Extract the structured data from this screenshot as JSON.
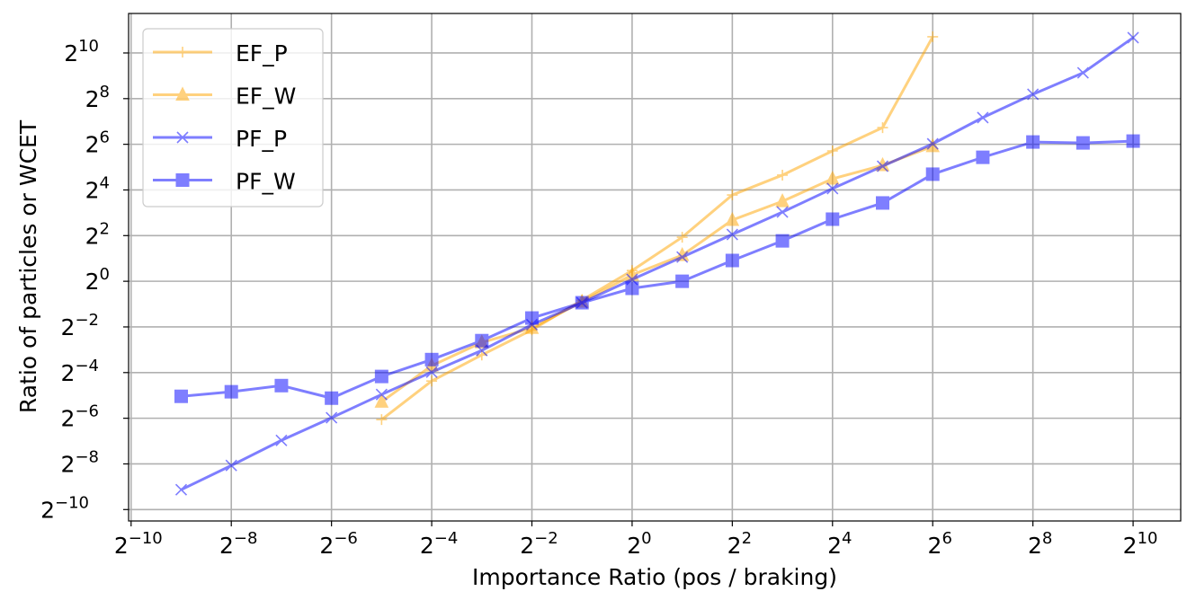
{
  "chart_data": {
    "type": "line",
    "title": "",
    "xlabel": "Importance Ratio (pos / braking)",
    "ylabel": "Ratio of particles or WCET",
    "xscale": "log2",
    "yscale": "log2",
    "xlim_log2": [
      -10.05,
      10.95
    ],
    "ylim_log2": [
      -10.5,
      11.73
    ],
    "grid": true,
    "legend_position": "top-left",
    "x_ticks_log2": [
      -10,
      -8,
      -6,
      -4,
      -2,
      0,
      2,
      4,
      6,
      8,
      10
    ],
    "y_ticks_log2": [
      -10,
      -8,
      -6,
      -4,
      -2,
      0,
      2,
      4,
      6,
      8,
      10
    ],
    "tick_base": "2",
    "series": [
      {
        "name": "EF_P",
        "color": "#ffa500",
        "marker": "plus",
        "x_log2": [
          -5,
          -4,
          -3,
          -2,
          -1,
          0,
          1,
          2,
          3,
          4,
          5,
          6
        ],
        "y_log2": [
          -6.06,
          -4.37,
          -3.23,
          -2.13,
          -0.83,
          0.47,
          1.93,
          3.78,
          4.65,
          5.71,
          6.73,
          10.71
        ]
      },
      {
        "name": "EF_W",
        "color": "#ffa500",
        "marker": "triangle",
        "x_log2": [
          -5,
          -4,
          -3,
          -2,
          -1,
          0,
          1,
          2,
          3,
          4,
          5,
          6
        ],
        "y_log2": [
          -5.28,
          -3.7,
          -2.68,
          -2.05,
          -0.9,
          0.28,
          1.14,
          2.68,
          3.5,
          4.49,
          5.08,
          5.91
        ]
      },
      {
        "name": "PF_P",
        "color": "#0000ff",
        "marker": "x",
        "x_log2": [
          -9,
          -8,
          -7,
          -6,
          -5,
          -4,
          -3,
          -2,
          -1,
          0,
          1,
          2,
          3,
          4,
          5,
          6,
          7,
          8,
          9,
          10
        ],
        "y_log2": [
          -9.13,
          -8.07,
          -6.97,
          -5.98,
          -4.96,
          -3.98,
          -3.03,
          -1.9,
          -0.94,
          0.08,
          1.06,
          2.05,
          3.03,
          4.06,
          5.04,
          6.02,
          7.17,
          8.19,
          9.13,
          10.67
        ]
      },
      {
        "name": "PF_W",
        "color": "#0000ff",
        "marker": "square",
        "x_log2": [
          -9,
          -8,
          -7,
          -6,
          -5,
          -4,
          -3,
          -2,
          -1,
          0,
          1,
          2,
          3,
          4,
          5,
          6,
          7,
          8,
          9,
          10
        ],
        "y_log2": [
          -5.04,
          -4.84,
          -4.57,
          -5.12,
          -4.17,
          -3.43,
          -2.6,
          -1.61,
          -0.94,
          -0.31,
          0,
          0.91,
          1.77,
          2.72,
          3.43,
          4.69,
          5.43,
          6.1,
          6.06,
          6.14
        ]
      }
    ]
  }
}
